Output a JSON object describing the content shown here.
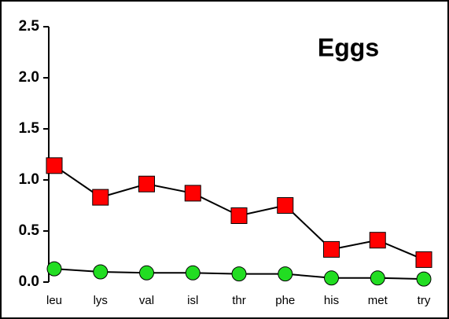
{
  "chart_data": {
    "type": "line",
    "title": "Eggs",
    "categories": [
      "leu",
      "lys",
      "val",
      "isl",
      "thr",
      "phe",
      "his",
      "met",
      "try"
    ],
    "series": [
      {
        "color": "#ff0000",
        "marker": "square",
        "values": [
          1.14,
          0.83,
          0.96,
          0.87,
          0.65,
          0.75,
          0.32,
          0.41,
          0.22
        ]
      },
      {
        "color": "#22dd22",
        "marker": "circle",
        "values": [
          0.13,
          0.1,
          0.09,
          0.09,
          0.08,
          0.08,
          0.04,
          0.04,
          0.03
        ]
      }
    ],
    "ylim": [
      0,
      2.5
    ],
    "yticks": [
      {
        "value": 0,
        "label": "0.0"
      },
      0.5,
      {
        "value": 1,
        "label": "1.0"
      },
      1.5,
      {
        "value": 2,
        "label": "2.0"
      },
      2.5
    ],
    "grid": false
  }
}
